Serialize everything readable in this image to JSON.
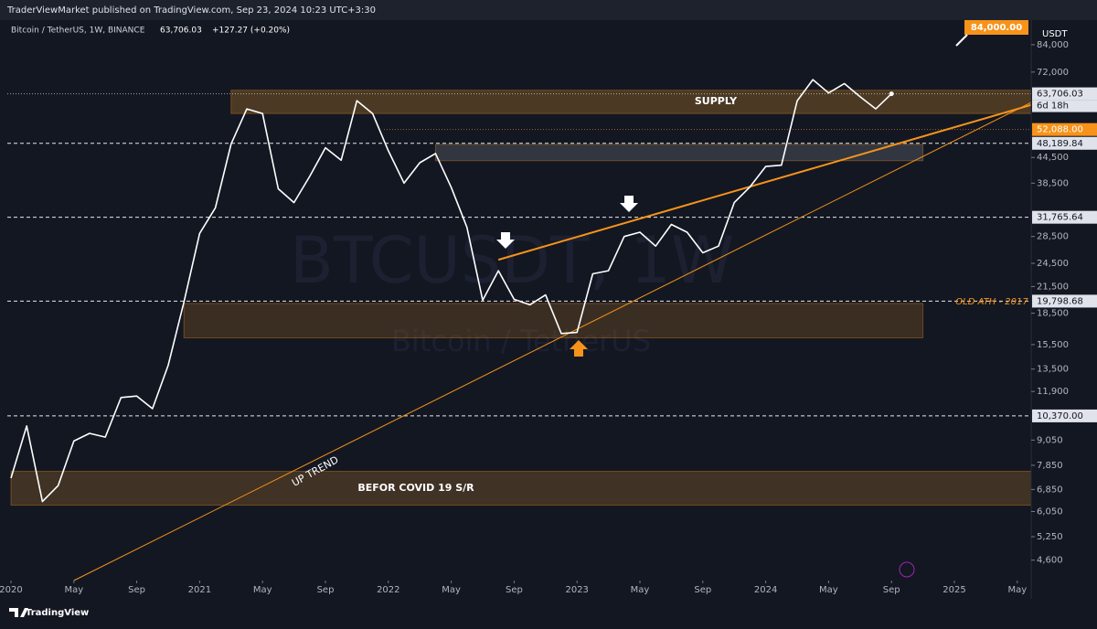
{
  "header": {
    "publisher": "TraderViewMarket published on TradingView.com, Sep 23, 2024 10:23 UTC+3:30",
    "brand": "TradingView"
  },
  "chart_data": {
    "type": "line",
    "log_scale": true,
    "grid": false,
    "title": "Bitcoin / TetherUS, 1W, BINANCE",
    "last_price": "63,706.03",
    "change": "+127.27 (+0.20%)",
    "watermark": "BTCUSDT, 1W",
    "watermark_sub": "Bitcoin / TetherUS",
    "currency": "USDT",
    "countdown": "6d 18h",
    "color": "#ffffff",
    "x": [
      "2020-01",
      "2020-02",
      "2020-03",
      "2020-04",
      "2020-05",
      "2020-06",
      "2020-07",
      "2020-08",
      "2020-09",
      "2020-10",
      "2020-11",
      "2020-12",
      "2021-01",
      "2021-02",
      "2021-03",
      "2021-04",
      "2021-05",
      "2021-06",
      "2021-07",
      "2021-08",
      "2021-09",
      "2021-10",
      "2021-11",
      "2021-12",
      "2022-01",
      "2022-02",
      "2022-03",
      "2022-04",
      "2022-05",
      "2022-06",
      "2022-07",
      "2022-08",
      "2022-09",
      "2022-10",
      "2022-11",
      "2022-12",
      "2023-01",
      "2023-02",
      "2023-03",
      "2023-04",
      "2023-05",
      "2023-06",
      "2023-07",
      "2023-08",
      "2023-09",
      "2023-10",
      "2023-11",
      "2023-12",
      "2024-01",
      "2024-02",
      "2024-03",
      "2024-04",
      "2024-05",
      "2024-06",
      "2024-07",
      "2024-08",
      "2024-09"
    ],
    "values": [
      7300,
      9800,
      6400,
      7000,
      9000,
      9400,
      9200,
      11500,
      11600,
      10800,
      13800,
      19700,
      29000,
      33500,
      48000,
      58500,
      57000,
      37300,
      34500,
      40000,
      47000,
      43800,
      61300,
      57000,
      46200,
      38500,
      43200,
      45500,
      37600,
      30000,
      19900,
      23500,
      20000,
      19400,
      20500,
      16500,
      16600,
      23100,
      23500,
      28500,
      29200,
      27000,
      30500,
      29200,
      26000,
      27000,
      34500,
      37700,
      42300,
      42600,
      61200,
      69000,
      64000,
      67500,
      62700,
      58500,
      63706.03
    ],
    "ylim": [
      4100,
      96500
    ],
    "yticks": [
      {
        "value": 84000,
        "label": "84,000"
      },
      {
        "value": 72000,
        "label": "72,000"
      },
      {
        "value": 44500,
        "label": "44,500"
      },
      {
        "value": 38500,
        "label": "38,500"
      },
      {
        "value": 28500,
        "label": "28,500"
      },
      {
        "value": 24500,
        "label": "24,500"
      },
      {
        "value": 21500,
        "label": "21,500"
      },
      {
        "value": 18500,
        "label": "18,500"
      },
      {
        "value": 15500,
        "label": "15,500"
      },
      {
        "value": 13500,
        "label": "13,500"
      },
      {
        "value": 11900,
        "label": "11,900"
      },
      {
        "value": 9050,
        "label": "9,050"
      },
      {
        "value": 7850,
        "label": "7,850"
      },
      {
        "value": 6850,
        "label": "6,850"
      },
      {
        "value": 6050,
        "label": "6,050"
      },
      {
        "value": 5250,
        "label": "5,250"
      },
      {
        "value": 4600,
        "label": "4,600"
      }
    ],
    "xticks": [
      {
        "value": "2020-01",
        "label": "2020"
      },
      {
        "value": "2020-05",
        "label": "May"
      },
      {
        "value": "2020-09",
        "label": "Sep"
      },
      {
        "value": "2021-01",
        "label": "2021"
      },
      {
        "value": "2021-05",
        "label": "May"
      },
      {
        "value": "2021-09",
        "label": "Sep"
      },
      {
        "value": "2022-01",
        "label": "2022"
      },
      {
        "value": "2022-05",
        "label": "May"
      },
      {
        "value": "2022-09",
        "label": "Sep"
      },
      {
        "value": "2023-01",
        "label": "2023"
      },
      {
        "value": "2023-05",
        "label": "May"
      },
      {
        "value": "2023-09",
        "label": "Sep"
      },
      {
        "value": "2024-01",
        "label": "2024"
      },
      {
        "value": "2024-05",
        "label": "May"
      },
      {
        "value": "2024-09",
        "label": "Sep"
      },
      {
        "value": "2025-01",
        "label": "2025"
      },
      {
        "value": "2025-05",
        "label": "May"
      }
    ],
    "levels": [
      {
        "value": 63706.03,
        "label": "63,706.03",
        "color": "#ffffff",
        "dash": "dotted"
      },
      {
        "value": 52088,
        "label": "52,088.00",
        "color": "#f7931a",
        "dash": "dotted"
      },
      {
        "value": 48189.84,
        "label": "48,189.84",
        "color": "#ffffff",
        "dash": "dashed"
      },
      {
        "value": 31765.64,
        "label": "31,765.64",
        "color": "#ffffff",
        "dash": "dashed"
      },
      {
        "value": 19798.68,
        "label": "19,798.68",
        "color": "#ffffff",
        "dash": "dashed"
      },
      {
        "value": 10370,
        "label": "10,370.00",
        "color": "#ffffff",
        "dash": "dashed"
      }
    ],
    "zones": [
      {
        "label": "SUPPLY",
        "from": "2021-03",
        "to": "2025-06",
        "ylim": [
          57000,
          65000
        ],
        "color": "rgba(180,120,40,0.35)"
      },
      {
        "from": "2022-04",
        "to": "2024-11",
        "ylim": [
          43700,
          47900
        ],
        "color": "rgba(120,125,140,0.3)"
      },
      {
        "from": "2020-12",
        "to": "2024-11",
        "ylim": [
          16100,
          19550
        ],
        "color": "rgba(150,100,40,0.3)"
      },
      {
        "label": "BEFOR COVID 19 S/R",
        "from": "2020-01",
        "to": "2025-06",
        "ylim": [
          6270,
          7590
        ],
        "color": "rgba(150,100,40,0.35)"
      }
    ],
    "trendlines": [
      {
        "label": "UP TREND",
        "from": [
          "2020-05",
          4100
        ],
        "to": [
          "2025-06",
          61000
        ],
        "color": "#f7931a",
        "width": 1
      },
      {
        "from": [
          "2022-08",
          25000
        ],
        "to": [
          "2025-06",
          60000
        ],
        "color": "#f7931a",
        "width": 2
      }
    ],
    "target": {
      "value": 84000,
      "label": "84,000.00"
    },
    "annotation": "OLD ATH - 2017"
  }
}
